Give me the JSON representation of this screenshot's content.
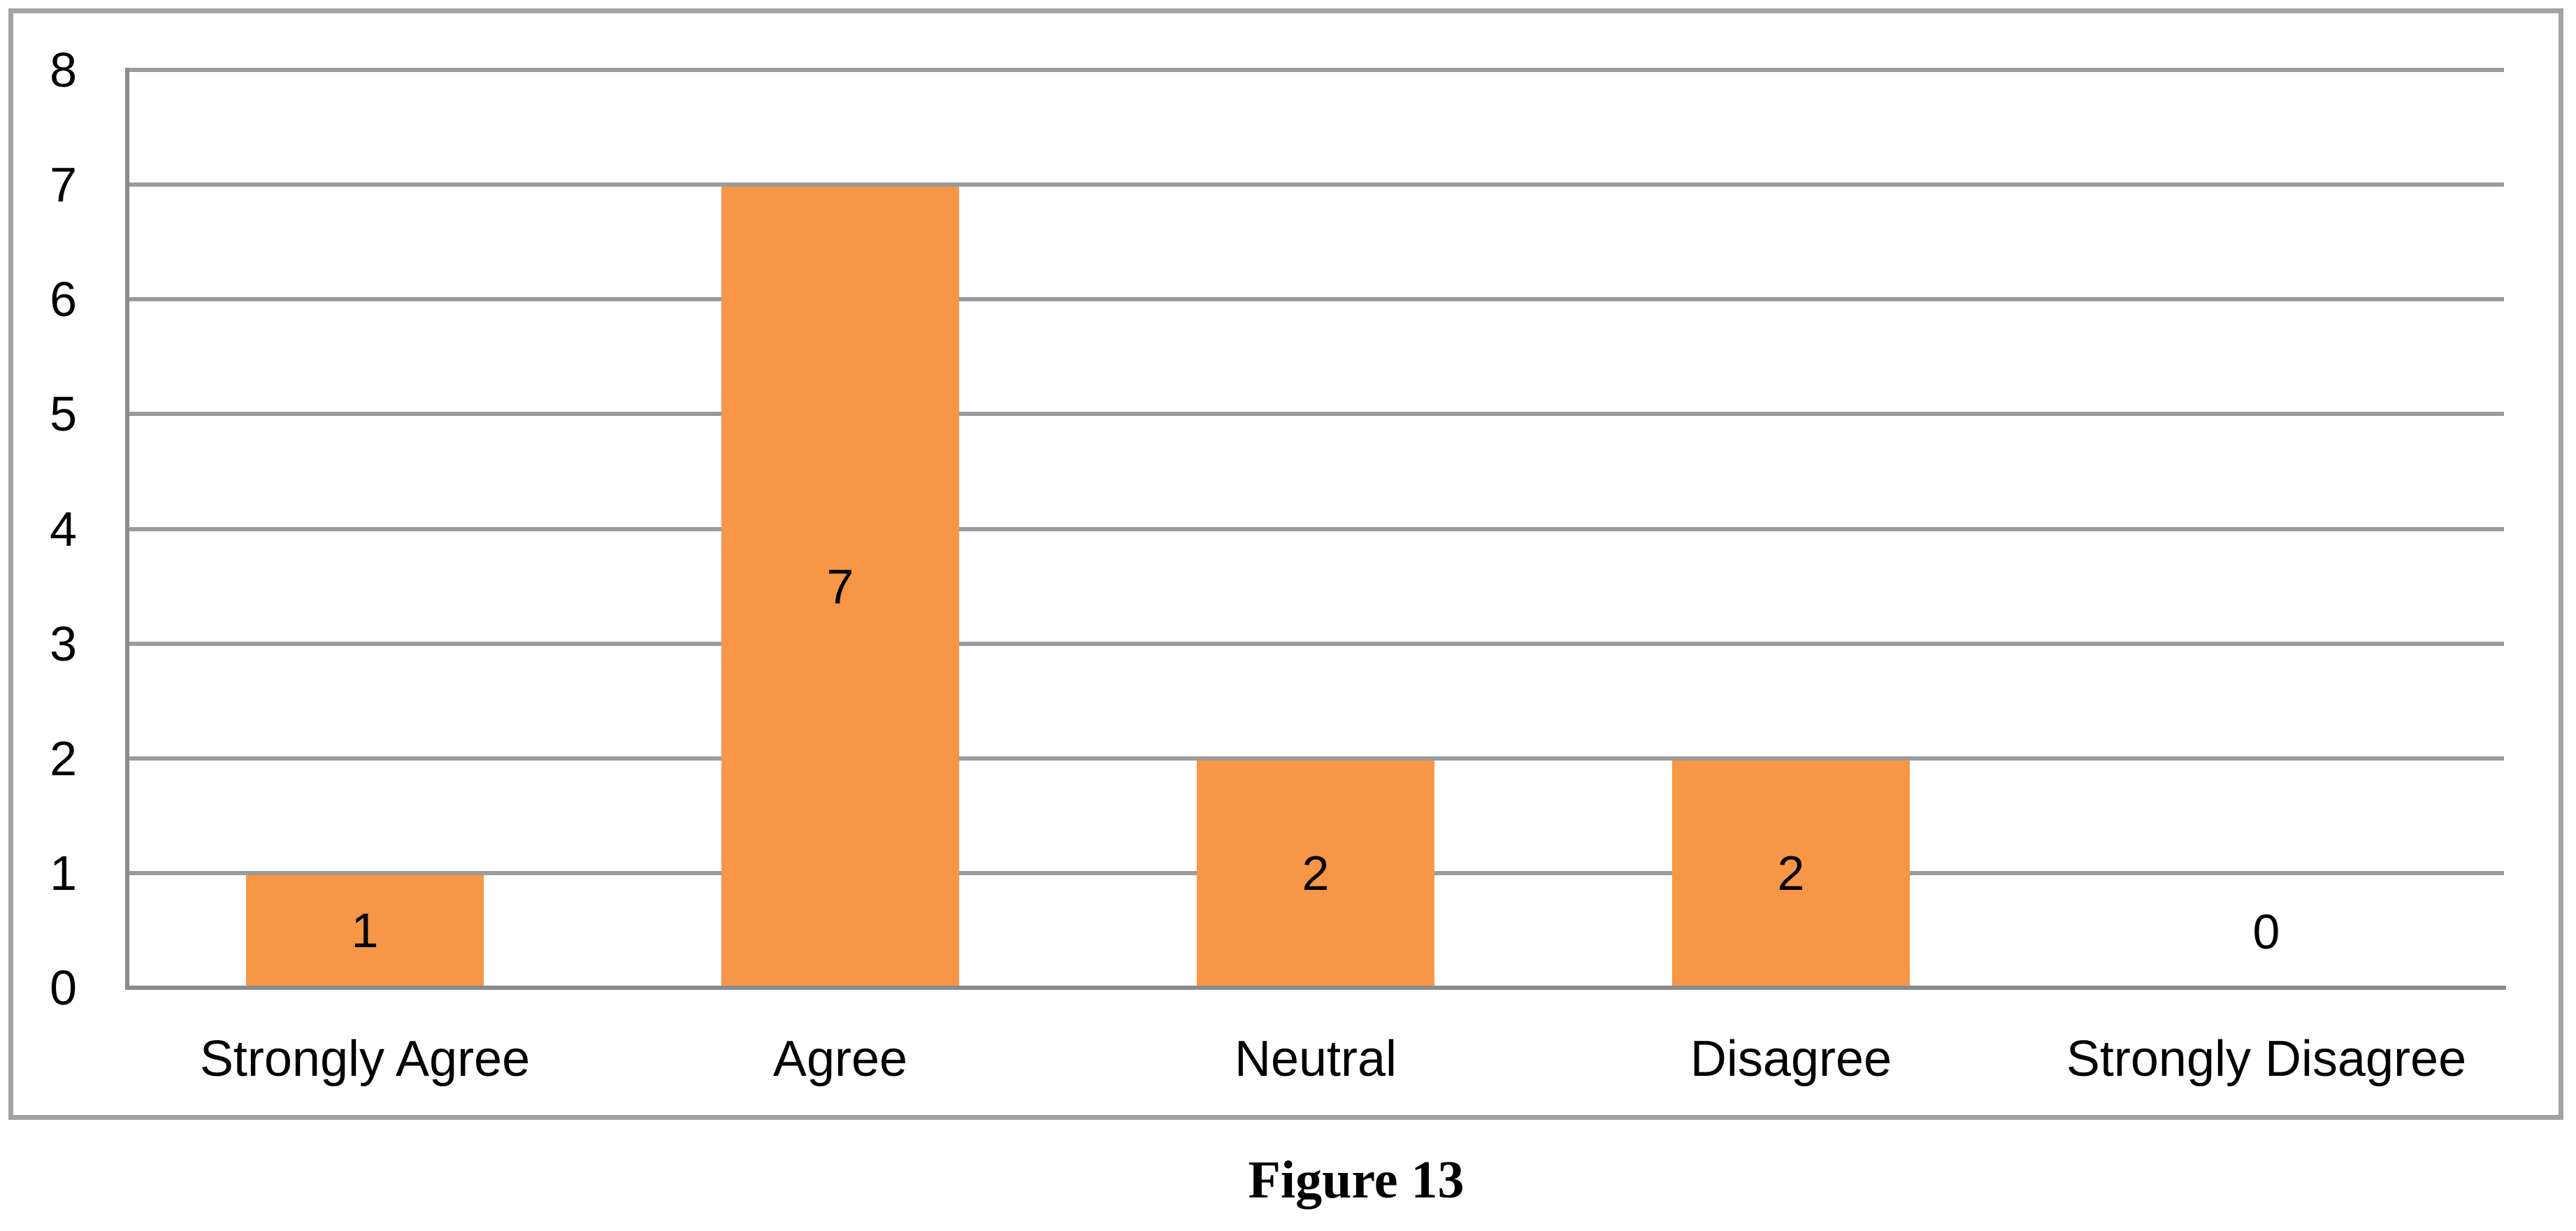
{
  "figure": {
    "caption": "Figure 13"
  },
  "chart_data": {
    "type": "bar",
    "title": "",
    "xlabel": "",
    "ylabel": "",
    "categories": [
      "Strongly Agree",
      "Agree",
      "Neutral",
      "Disagree",
      "Strongly Disagree"
    ],
    "values": [
      1,
      7,
      2,
      2,
      0
    ],
    "data_labels": [
      "1",
      "7",
      "2",
      "2",
      "0"
    ],
    "yticks": [
      0,
      1,
      2,
      3,
      4,
      5,
      6,
      7,
      8
    ],
    "ylim": [
      0,
      8
    ],
    "grid": "horizontal",
    "legend": "none",
    "data_label_position": "center",
    "colors": {
      "bar_fill": "#F79646",
      "gridline": "#9B9B9B",
      "axis": "#8A8A8A",
      "chart_border": "#A2A2A2",
      "text": "#000000"
    }
  }
}
